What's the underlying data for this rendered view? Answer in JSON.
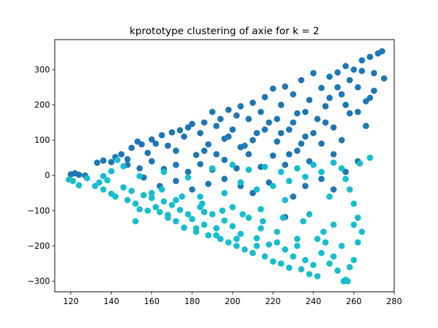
{
  "chart_data": {
    "type": "scatter",
    "title": "kprototype clustering of axie for k = 2",
    "xlabel": "",
    "ylabel": "",
    "xlim": [
      112,
      280
    ],
    "ylim": [
      -330,
      385
    ],
    "x_ticks": [
      120,
      140,
      160,
      180,
      200,
      220,
      240,
      260,
      280
    ],
    "y_ticks": [
      -300,
      -200,
      -100,
      0,
      100,
      200,
      300
    ],
    "grid": false,
    "legend": "none",
    "series": [
      {
        "color": "#1f77b4",
        "points": [
          [
            120,
            3
          ],
          [
            122,
            6
          ],
          [
            124,
            2
          ],
          [
            127,
            0
          ],
          [
            133,
            36
          ],
          [
            136,
            42
          ],
          [
            140,
            38
          ],
          [
            142,
            52
          ],
          [
            145,
            60
          ],
          [
            148,
            30
          ],
          [
            150,
            78
          ],
          [
            153,
            96
          ],
          [
            155,
            88
          ],
          [
            158,
            64
          ],
          [
            160,
            102
          ],
          [
            162,
            90
          ],
          [
            165,
            114
          ],
          [
            168,
            84
          ],
          [
            170,
            122
          ],
          [
            172,
            70
          ],
          [
            174,
            128
          ],
          [
            176,
            110
          ],
          [
            178,
            136
          ],
          [
            180,
            146
          ],
          [
            182,
            58
          ],
          [
            184,
            120
          ],
          [
            186,
            150
          ],
          [
            188,
            88
          ],
          [
            190,
            180
          ],
          [
            192,
            140
          ],
          [
            194,
            160
          ],
          [
            196,
            104
          ],
          [
            198,
            186
          ],
          [
            200,
            130
          ],
          [
            202,
            170
          ],
          [
            204,
            196
          ],
          [
            206,
            84
          ],
          [
            208,
            160
          ],
          [
            210,
            206
          ],
          [
            212,
            120
          ],
          [
            214,
            180
          ],
          [
            216,
            222
          ],
          [
            218,
            150
          ],
          [
            220,
            246
          ],
          [
            222,
            96
          ],
          [
            224,
            200
          ],
          [
            226,
            252
          ],
          [
            228,
            130
          ],
          [
            230,
            230
          ],
          [
            232,
            176
          ],
          [
            234,
            270
          ],
          [
            236,
            110
          ],
          [
            238,
            214
          ],
          [
            240,
            290
          ],
          [
            242,
            160
          ],
          [
            244,
            248
          ],
          [
            246,
            196
          ],
          [
            248,
            280
          ],
          [
            250,
            136
          ],
          [
            252,
            292
          ],
          [
            254,
            230
          ],
          [
            256,
            310
          ],
          [
            258,
            176
          ],
          [
            260,
            300
          ],
          [
            262,
            250
          ],
          [
            264,
            326
          ],
          [
            266,
            210
          ],
          [
            268,
            336
          ],
          [
            270,
            290
          ],
          [
            272,
            346
          ],
          [
            274,
            352
          ],
          [
            275,
            275
          ],
          [
            268,
            220
          ],
          [
            262,
            180
          ],
          [
            256,
            200
          ],
          [
            250,
            60
          ],
          [
            244,
            90
          ],
          [
            238,
            40
          ],
          [
            232,
            70
          ],
          [
            226,
            30
          ],
          [
            220,
            56
          ],
          [
            214,
            24
          ],
          [
            208,
            60
          ],
          [
            202,
            20
          ],
          [
            196,
            44
          ],
          [
            190,
            16
          ],
          [
            184,
            32
          ],
          [
            178,
            10
          ],
          [
            172,
            30
          ],
          [
            166,
            18
          ],
          [
            160,
            40
          ],
          [
            154,
            20
          ],
          [
            148,
            46
          ],
          [
            226,
            -118
          ],
          [
            230,
            -60
          ],
          [
            236,
            -30
          ],
          [
            244,
            -10
          ],
          [
            250,
            -40
          ],
          [
            256,
            10
          ],
          [
            262,
            40
          ],
          [
            218,
            -20
          ],
          [
            210,
            -50
          ],
          [
            204,
            -30
          ],
          [
            196,
            -10
          ],
          [
            188,
            -24
          ],
          [
            180,
            -40
          ],
          [
            172,
            -16
          ],
          [
            164,
            -30
          ],
          [
            156,
            -6
          ],
          [
            246,
            150
          ],
          [
            240,
            120
          ],
          [
            234,
            90
          ],
          [
            228,
            60
          ],
          [
            222,
            160
          ],
          [
            216,
            130
          ],
          [
            210,
            100
          ],
          [
            204,
            80
          ],
          [
            198,
            110
          ],
          [
            192,
            60
          ],
          [
            186,
            70
          ],
          [
            252,
            250
          ],
          [
            248,
            220
          ],
          [
            236,
            180
          ],
          [
            230,
            150
          ],
          [
            224,
            120
          ],
          [
            258,
            270
          ],
          [
            264,
            296
          ],
          [
            254,
            100
          ],
          [
            266,
            140
          ],
          [
            270,
            240
          ]
        ]
      },
      {
        "color": "#17becf",
        "points": [
          [
            119,
            -12
          ],
          [
            121,
            -16
          ],
          [
            124,
            -28
          ],
          [
            128,
            -8
          ],
          [
            132,
            -30
          ],
          [
            134,
            -20
          ],
          [
            136,
            -40
          ],
          [
            138,
            -14
          ],
          [
            140,
            -52
          ],
          [
            142,
            -60
          ],
          [
            143,
            44
          ],
          [
            146,
            -34
          ],
          [
            148,
            -70
          ],
          [
            150,
            -44
          ],
          [
            152,
            -80
          ],
          [
            154,
            -96
          ],
          [
            156,
            -56
          ],
          [
            158,
            -100
          ],
          [
            160,
            -64
          ],
          [
            162,
            -90
          ],
          [
            164,
            -104
          ],
          [
            166,
            -74
          ],
          [
            168,
            -120
          ],
          [
            170,
            -84
          ],
          [
            172,
            -130
          ],
          [
            174,
            -98
          ],
          [
            176,
            -148
          ],
          [
            178,
            -110
          ],
          [
            180,
            -124
          ],
          [
            182,
            -160
          ],
          [
            184,
            -90
          ],
          [
            186,
            -140
          ],
          [
            188,
            -170
          ],
          [
            190,
            -110
          ],
          [
            192,
            -150
          ],
          [
            194,
            -180
          ],
          [
            196,
            -128
          ],
          [
            198,
            -190
          ],
          [
            200,
            -144
          ],
          [
            202,
            -200
          ],
          [
            204,
            -166
          ],
          [
            206,
            -210
          ],
          [
            208,
            -120
          ],
          [
            210,
            -220
          ],
          [
            212,
            -178
          ],
          [
            214,
            -150
          ],
          [
            216,
            -230
          ],
          [
            218,
            -196
          ],
          [
            220,
            -244
          ],
          [
            222,
            -160
          ],
          [
            224,
            -250
          ],
          [
            226,
            -210
          ],
          [
            228,
            -262
          ],
          [
            230,
            -230
          ],
          [
            232,
            -180
          ],
          [
            234,
            -266
          ],
          [
            236,
            -240
          ],
          [
            238,
            -280
          ],
          [
            240,
            -254
          ],
          [
            242,
            -286
          ],
          [
            244,
            -220
          ],
          [
            246,
            -190
          ],
          [
            248,
            -250
          ],
          [
            250,
            -230
          ],
          [
            252,
            -270
          ],
          [
            254,
            -200
          ],
          [
            256,
            -296
          ],
          [
            258,
            -260
          ],
          [
            260,
            -240
          ],
          [
            262,
            -190
          ],
          [
            264,
            -160
          ],
          [
            262,
            -120
          ],
          [
            260,
            -80
          ],
          [
            258,
            -40
          ],
          [
            256,
            -10
          ],
          [
            254,
            20
          ],
          [
            250,
            36
          ],
          [
            244,
            10
          ],
          [
            240,
            30
          ],
          [
            236,
            -4
          ],
          [
            232,
            20
          ],
          [
            228,
            -16
          ],
          [
            224,
            10
          ],
          [
            220,
            -30
          ],
          [
            216,
            24
          ],
          [
            212,
            -40
          ],
          [
            208,
            16
          ],
          [
            204,
            -20
          ],
          [
            200,
            30
          ],
          [
            196,
            -50
          ],
          [
            190,
            20
          ],
          [
            184,
            -60
          ],
          [
            178,
            -6
          ],
          [
            172,
            -70
          ],
          [
            166,
            10
          ],
          [
            160,
            -50
          ],
          [
            154,
            -2
          ],
          [
            152,
            -130
          ],
          [
            168,
            -112
          ],
          [
            186,
            -104
          ],
          [
            200,
            -90
          ],
          [
            214,
            -96
          ],
          [
            226,
            -70
          ],
          [
            238,
            -110
          ],
          [
            248,
            -60
          ],
          [
            268,
            50
          ],
          [
            263,
            34
          ],
          [
            255,
            -300
          ],
          [
            257,
            -300
          ],
          [
            245,
            -160
          ],
          [
            235,
            -130
          ],
          [
            225,
            -120
          ],
          [
            215,
            -130
          ],
          [
            205,
            -110
          ],
          [
            195,
            -100
          ],
          [
            185,
            -80
          ],
          [
            175,
            -60
          ],
          [
            165,
            -40
          ],
          [
            250,
            -140
          ],
          [
            260,
            -140
          ],
          [
            242,
            -180
          ],
          [
            232,
            -200
          ],
          [
            222,
            -190
          ],
          [
            212,
            -200
          ],
          [
            202,
            -180
          ],
          [
            192,
            -170
          ],
          [
            182,
            -150
          ],
          [
            146,
            26
          ],
          [
            140,
            12
          ],
          [
            136,
            -2
          ]
        ]
      }
    ]
  }
}
